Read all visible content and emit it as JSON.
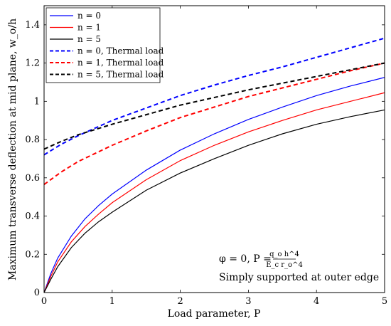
{
  "chart_data": {
    "type": "line",
    "xlabel": "Load parameter, P",
    "ylabel": "Maximum transverse deflection at mid plane, w_o/h",
    "xlim": [
      0,
      5
    ],
    "ylim": [
      0,
      1.5
    ],
    "x_ticks": [
      "0",
      "1",
      "2",
      "3",
      "4",
      "5"
    ],
    "y_ticks": [
      "0",
      "0.2",
      "0.4",
      "0.6",
      "0.8",
      "1",
      "1.2",
      "1.4"
    ],
    "legend_position": "top-left",
    "grid": false,
    "annotations": {
      "formula_prefix": "φ = 0, P = ",
      "formula_numerator": "q_o h^4",
      "formula_denominator": "E_c r_o^4",
      "support": "Simply supported at outer edge"
    },
    "series": [
      {
        "name": "n = 0",
        "color": "#0000ff",
        "style": "solid",
        "x": [
          0,
          0.1,
          0.2,
          0.4,
          0.6,
          0.8,
          1,
          1.5,
          2,
          2.5,
          3,
          3.5,
          4,
          4.5,
          5
        ],
        "y": [
          0,
          0.1,
          0.18,
          0.295,
          0.385,
          0.455,
          0.515,
          0.64,
          0.745,
          0.83,
          0.905,
          0.97,
          1.03,
          1.08,
          1.125
        ]
      },
      {
        "name": "n = 1",
        "color": "#ff0000",
        "style": "solid",
        "x": [
          0,
          0.1,
          0.2,
          0.4,
          0.6,
          0.8,
          1,
          1.5,
          2,
          2.5,
          3,
          3.5,
          4,
          4.5,
          5
        ],
        "y": [
          0,
          0.085,
          0.16,
          0.265,
          0.345,
          0.41,
          0.47,
          0.59,
          0.69,
          0.77,
          0.84,
          0.9,
          0.955,
          1.0,
          1.045
        ]
      },
      {
        "name": "n = 5",
        "color": "#000000",
        "style": "solid",
        "x": [
          0,
          0.1,
          0.2,
          0.4,
          0.6,
          0.8,
          1,
          1.5,
          2,
          2.5,
          3,
          3.5,
          4,
          4.5,
          5
        ],
        "y": [
          0,
          0.07,
          0.135,
          0.235,
          0.31,
          0.37,
          0.42,
          0.535,
          0.625,
          0.7,
          0.77,
          0.83,
          0.88,
          0.92,
          0.955
        ]
      },
      {
        "name": "n = 0, Thermal load",
        "color": "#0000ff",
        "style": "dashed",
        "x": [
          0,
          0.25,
          0.5,
          1,
          1.5,
          2,
          2.5,
          3,
          3.5,
          4,
          4.5,
          5
        ],
        "y": [
          0.72,
          0.775,
          0.82,
          0.9,
          0.965,
          1.03,
          1.085,
          1.135,
          1.18,
          1.23,
          1.28,
          1.33
        ]
      },
      {
        "name": "n = 1, Thermal load",
        "color": "#ff0000",
        "style": "dashed",
        "x": [
          0,
          0.25,
          0.5,
          1,
          1.5,
          2,
          2.5,
          3,
          3.5,
          4,
          4.5,
          5
        ],
        "y": [
          0.565,
          0.63,
          0.685,
          0.77,
          0.845,
          0.915,
          0.97,
          1.025,
          1.07,
          1.115,
          1.16,
          1.2
        ]
      },
      {
        "name": "n = 5, Thermal load",
        "color": "#000000",
        "style": "dashed",
        "x": [
          0,
          0.25,
          0.5,
          1,
          1.5,
          2,
          2.5,
          3,
          3.5,
          4,
          4.5,
          5
        ],
        "y": [
          0.75,
          0.79,
          0.825,
          0.88,
          0.93,
          0.98,
          1.02,
          1.06,
          1.095,
          1.13,
          1.165,
          1.2
        ]
      }
    ]
  }
}
